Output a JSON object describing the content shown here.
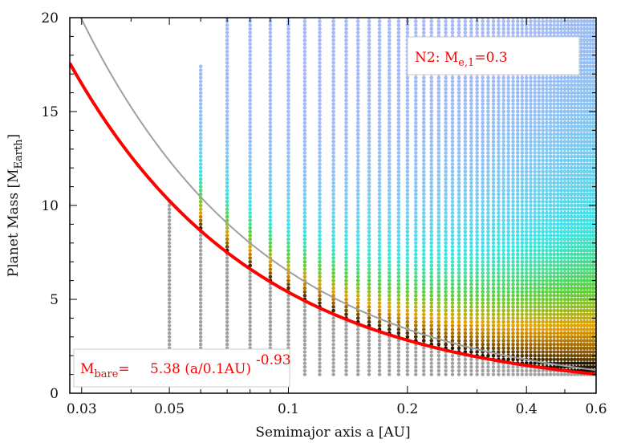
{
  "chart_data": {
    "type": "scatter",
    "xlabel": "Semimajor axis a [AU]",
    "ylabel": {
      "main": "Planet Mass [M",
      "sub": "Earth",
      "end": "]"
    },
    "xscale": "log",
    "xlim": [
      0.028,
      0.6
    ],
    "ylim": [
      0,
      20
    ],
    "xticks": [
      {
        "value": 0.03,
        "label": "0.03"
      },
      {
        "value": 0.05,
        "label": "0.05"
      },
      {
        "value": 0.1,
        "label": "0.1"
      },
      {
        "value": 0.2,
        "label": "0.2"
      },
      {
        "value": 0.4,
        "label": "0.4"
      },
      {
        "value": 0.6,
        "label": "0.6"
      }
    ],
    "yticks": [
      {
        "value": 0,
        "label": "0"
      },
      {
        "value": 5,
        "label": "5"
      },
      {
        "value": 10,
        "label": "10"
      },
      {
        "value": 15,
        "label": "15"
      },
      {
        "value": 20,
        "label": "20"
      }
    ],
    "grid": false,
    "annotations": {
      "top_right": {
        "pre": "N2: M",
        "sub": "e,1",
        "post": "=0.3"
      },
      "bottom_left": {
        "pre": "M",
        "sub": "bare",
        "eq": "=",
        "formula": "5.38 (a/0.1AU)",
        "sup": "-0.93"
      }
    },
    "curves": [
      {
        "id": "bare-mass-fit",
        "color": "#ff0000",
        "coefficient": 5.38,
        "exponent": -0.93,
        "reference_a": 0.1
      },
      {
        "id": "upper-gray-curve",
        "color": "#a0a0a0",
        "coefficient": 6.5,
        "exponent": -0.93,
        "reference_a": 0.1
      }
    ],
    "grid_columns_a": [
      0.05,
      0.06,
      0.07,
      0.08,
      0.09,
      0.1,
      0.11,
      0.12,
      0.13,
      0.14,
      0.15,
      0.16,
      0.17,
      0.18,
      0.19,
      0.2,
      0.21,
      0.22,
      0.23,
      0.24,
      0.25,
      0.26,
      0.27,
      0.28,
      0.29,
      0.3,
      0.31,
      0.32,
      0.33,
      0.34,
      0.35,
      0.36,
      0.37,
      0.38,
      0.39,
      0.4,
      0.41,
      0.42,
      0.43,
      0.44,
      0.45,
      0.46,
      0.47,
      0.48,
      0.49,
      0.5,
      0.51,
      0.52,
      0.53,
      0.54,
      0.55,
      0.56,
      0.57,
      0.58,
      0.59,
      0.6
    ],
    "mass_step": 0.2,
    "mass_min": 1.0,
    "colors": {
      "bare": "#a0a0a0",
      "fit": "#ff0000",
      "atmosphere_scale": [
        "#000000",
        "#8b5a00",
        "#e8a100",
        "#5ad13a",
        "#38e6e6",
        "#a8b8f8"
      ],
      "annotation": "#ff0000"
    }
  }
}
